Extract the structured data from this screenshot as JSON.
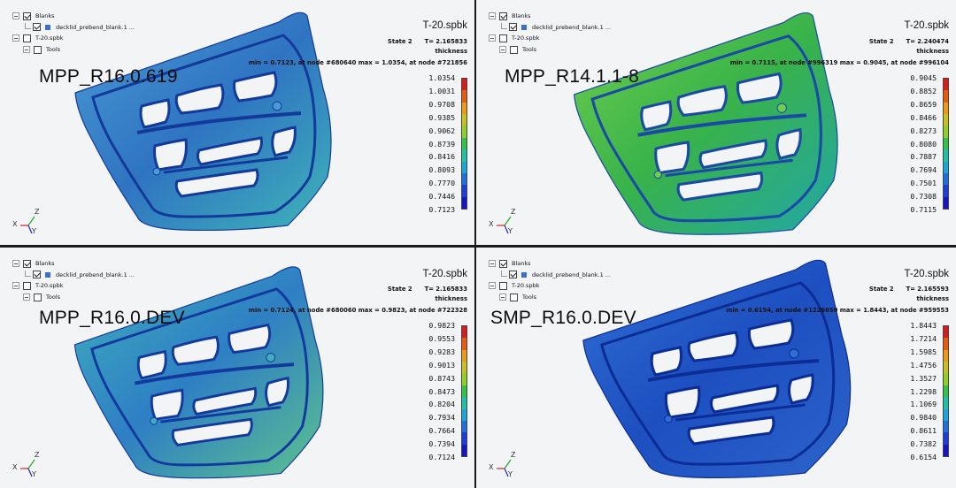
{
  "panels": [
    {
      "tree": {
        "blanks": "Blanks",
        "blank_item": "decklid_prebend_blank.1 ...",
        "tooling": "T-20.spbk",
        "tools": "Tools"
      },
      "model_label": "MPP_R16.0.619",
      "file_name": "T-20.spbk",
      "state": "State 2",
      "time": "T= 2.165833",
      "quantity": "thickness",
      "minmax": "min = 0.7123, at node #680640  max = 1.0354, at node #721856",
      "legend": [
        "1.0354",
        "1.0031",
        "0.9708",
        "0.9385",
        "0.9062",
        "0.8739",
        "0.8416",
        "0.8093",
        "0.7770",
        "0.7446",
        "0.7123"
      ],
      "axes": {
        "x": "X",
        "y": "Y",
        "z": "Z"
      },
      "colors": {
        "base": "#2f74c2",
        "light": "#4a9bd3",
        "dark": "#13399b",
        "accent": "#3fb4b8"
      }
    },
    {
      "tree": {
        "blanks": "Blanks",
        "blank_item": "decklid_prebend_blank.1 ...",
        "tooling": "T-20.spbk",
        "tools": "Tools"
      },
      "model_label": "MPP_R14.1.1-8",
      "file_name": "T-20.spbk",
      "state": "State 2",
      "time": "T= 2.240474",
      "quantity": "thickness",
      "minmax": "min = 0.7115, at node #996319  max = 0.9045, at node #996104",
      "legend": [
        "0.9045",
        "0.8852",
        "0.8659",
        "0.8466",
        "0.8273",
        "0.8080",
        "0.7887",
        "0.7694",
        "0.7501",
        "0.7308",
        "0.7115"
      ],
      "axes": {
        "x": "X",
        "y": "Y",
        "z": "Z"
      },
      "colors": {
        "base": "#38b24a",
        "light": "#6fcf4d",
        "dark": "#1b4aa4",
        "accent": "#22a7a8"
      }
    },
    {
      "tree": {
        "blanks": "Blanks",
        "blank_item": "decklid_prebend_blank.1 ...",
        "tooling": "T-20.spbk",
        "tools": "Tools"
      },
      "model_label": "MPP_R16.0.DEV",
      "file_name": "T-20.spbk",
      "state": "State 2",
      "time": "T= 2.165833",
      "quantity": "thickness",
      "minmax": "min = 0.7124, at node #680060  max = 0.9823, at node #722328",
      "legend": [
        "0.9823",
        "0.9553",
        "0.9283",
        "0.9013",
        "0.8743",
        "0.8473",
        "0.8204",
        "0.7934",
        "0.7664",
        "0.7394",
        "0.7124"
      ],
      "axes": {
        "x": "X",
        "y": "Y",
        "z": "Z"
      },
      "colors": {
        "base": "#2e7fc4",
        "light": "#3fb0bc",
        "dark": "#14399e",
        "accent": "#5cc28e"
      }
    },
    {
      "tree": {
        "blanks": "Blanks",
        "blank_item": "decklid_prebend_blank.1 ...",
        "tooling": "T-20.spbk",
        "tools": "Tools"
      },
      "model_label": "SMP_R16.0.DEV",
      "file_name": "T-20.spbk",
      "state": "State 2",
      "time": "T= 2.165593",
      "quantity": "thickness",
      "minmax": "min = 0.6154, at node #1226650  max = 1.8443, at node #959553",
      "legend": [
        "1.8443",
        "1.7214",
        "1.5985",
        "1.4756",
        "1.3527",
        "1.2298",
        "1.1069",
        "0.9840",
        "0.8611",
        "0.7382",
        "0.6154"
      ],
      "axes": {
        "x": "X",
        "y": "Y",
        "z": "Z"
      },
      "colors": {
        "base": "#1d4fc0",
        "light": "#2f6fd3",
        "dark": "#0c2d96",
        "accent": "#2d64cc"
      }
    }
  ],
  "legend_colors": [
    "#d81b1b",
    "#e85a10",
    "#eb9a15",
    "#c8c020",
    "#8fcf2a",
    "#35c04a",
    "#1fc0a8",
    "#1aa6d8",
    "#1f6fe0",
    "#1c3ddb",
    "#1414c8"
  ]
}
